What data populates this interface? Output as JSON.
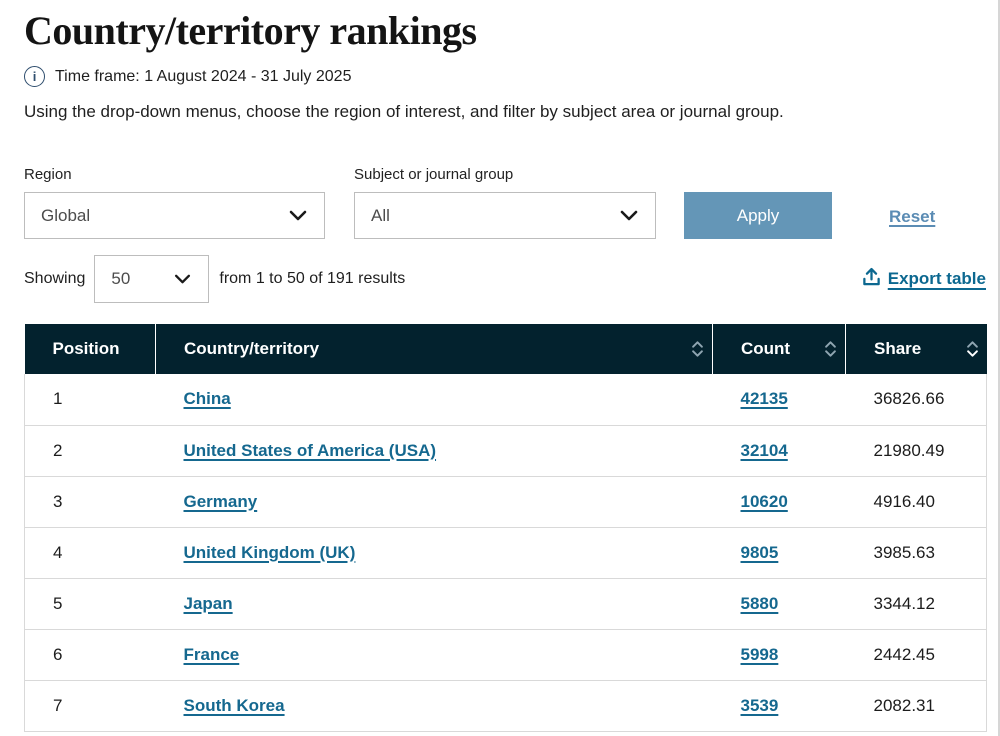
{
  "page": {
    "title": "Country/territory rankings",
    "time_frame": "Time frame: 1 August 2024 - 31 July 2025",
    "description": "Using the drop-down menus, choose the region of interest, and filter by subject area or journal group.",
    "info_icon_glyph": "i"
  },
  "filters": {
    "region": {
      "label": "Region",
      "value": "Global"
    },
    "subject": {
      "label": "Subject or journal group",
      "value": "All"
    },
    "apply_label": "Apply",
    "reset_label": "Reset"
  },
  "results_bar": {
    "showing_label": "Showing",
    "page_size": "50",
    "range_text": "from 1 to 50 of 191 results",
    "export_label": "Export table"
  },
  "table": {
    "columns": [
      {
        "label": "Position",
        "sortable": false,
        "sort": "none"
      },
      {
        "label": "Country/territory",
        "sortable": true,
        "sort": "none"
      },
      {
        "label": "Count",
        "sortable": true,
        "sort": "none"
      },
      {
        "label": "Share",
        "sortable": true,
        "sort": "desc"
      }
    ],
    "rows": [
      {
        "position": "1",
        "country": "China",
        "count": "42135",
        "share": "36826.66"
      },
      {
        "position": "2",
        "country": "United States of America (USA)",
        "count": "32104",
        "share": "21980.49"
      },
      {
        "position": "3",
        "country": "Germany",
        "count": "10620",
        "share": "4916.40"
      },
      {
        "position": "4",
        "country": "United Kingdom (UK)",
        "count": "9805",
        "share": "3985.63"
      },
      {
        "position": "5",
        "country": "Japan",
        "count": "5880",
        "share": "3344.12"
      },
      {
        "position": "6",
        "country": "France",
        "count": "5998",
        "share": "2442.45"
      },
      {
        "position": "7",
        "country": "South Korea",
        "count": "3539",
        "share": "2082.31"
      }
    ]
  },
  "colors": {
    "header_bg": "#03222e",
    "link": "#15688f",
    "export_link": "#0c6890",
    "apply_button": "#6496b7",
    "reset_link": "#5b8cb4",
    "sort_inactive": "#8fa5b1",
    "sort_active": "#ffffff",
    "row_border": "#d9d9d9"
  }
}
